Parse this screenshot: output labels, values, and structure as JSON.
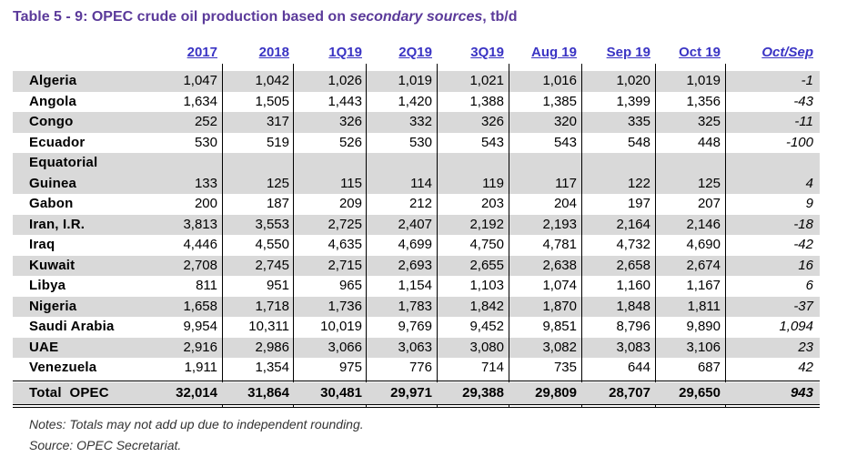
{
  "title": {
    "prefix": "Table 5 - 9: OPEC crude oil production based on ",
    "italic": "secondary sources",
    "suffix": ", tb/d"
  },
  "columns": [
    "2017",
    "2018",
    "1Q19",
    "2Q19",
    "3Q19",
    "Aug 19",
    "Sep 19",
    "Oct 19",
    "Oct/Sep"
  ],
  "rows": [
    {
      "name": "Algeria",
      "values": [
        "1,047",
        "1,042",
        "1,026",
        "1,019",
        "1,021",
        "1,016",
        "1,020",
        "1,019",
        "-1"
      ]
    },
    {
      "name": "Angola",
      "values": [
        "1,634",
        "1,505",
        "1,443",
        "1,420",
        "1,388",
        "1,385",
        "1,399",
        "1,356",
        "-43"
      ]
    },
    {
      "name": "Congo",
      "values": [
        "252",
        "317",
        "326",
        "332",
        "326",
        "320",
        "335",
        "325",
        "-11"
      ]
    },
    {
      "name": "Ecuador",
      "values": [
        "530",
        "519",
        "526",
        "530",
        "543",
        "543",
        "548",
        "448",
        "-100"
      ]
    },
    {
      "name": "Equatorial",
      "name2": "Guinea",
      "values": [
        "133",
        "125",
        "115",
        "114",
        "119",
        "117",
        "122",
        "125",
        "4"
      ]
    },
    {
      "name": "Gabon",
      "values": [
        "200",
        "187",
        "209",
        "212",
        "203",
        "204",
        "197",
        "207",
        "9"
      ]
    },
    {
      "name": "Iran, I.R.",
      "values": [
        "3,813",
        "3,553",
        "2,725",
        "2,407",
        "2,192",
        "2,193",
        "2,164",
        "2,146",
        "-18"
      ]
    },
    {
      "name": "Iraq",
      "values": [
        "4,446",
        "4,550",
        "4,635",
        "4,699",
        "4,750",
        "4,781",
        "4,732",
        "4,690",
        "-42"
      ]
    },
    {
      "name": "Kuwait",
      "values": [
        "2,708",
        "2,745",
        "2,715",
        "2,693",
        "2,655",
        "2,638",
        "2,658",
        "2,674",
        "16"
      ]
    },
    {
      "name": "Libya",
      "values": [
        "811",
        "951",
        "965",
        "1,154",
        "1,103",
        "1,074",
        "1,160",
        "1,167",
        "6"
      ]
    },
    {
      "name": "Nigeria",
      "values": [
        "1,658",
        "1,718",
        "1,736",
        "1,783",
        "1,842",
        "1,870",
        "1,848",
        "1,811",
        "-37"
      ]
    },
    {
      "name": "Saudi Arabia",
      "values": [
        "9,954",
        "10,311",
        "10,019",
        "9,769",
        "9,452",
        "9,851",
        "8,796",
        "9,890",
        "1,094"
      ]
    },
    {
      "name": "UAE",
      "values": [
        "2,916",
        "2,986",
        "3,066",
        "3,063",
        "3,080",
        "3,082",
        "3,083",
        "3,106",
        "23"
      ]
    },
    {
      "name": "Venezuela",
      "values": [
        "1,911",
        "1,354",
        "975",
        "776",
        "714",
        "735",
        "644",
        "687",
        "42"
      ]
    }
  ],
  "total": {
    "name": "Total  OPEC",
    "values": [
      "32,014",
      "31,864",
      "30,481",
      "29,971",
      "29,388",
      "29,809",
      "28,707",
      "29,650",
      "943"
    ]
  },
  "notes": [
    "Notes: Totals may not add up due to independent rounding.",
    "Source: OPEC Secretariat."
  ]
}
